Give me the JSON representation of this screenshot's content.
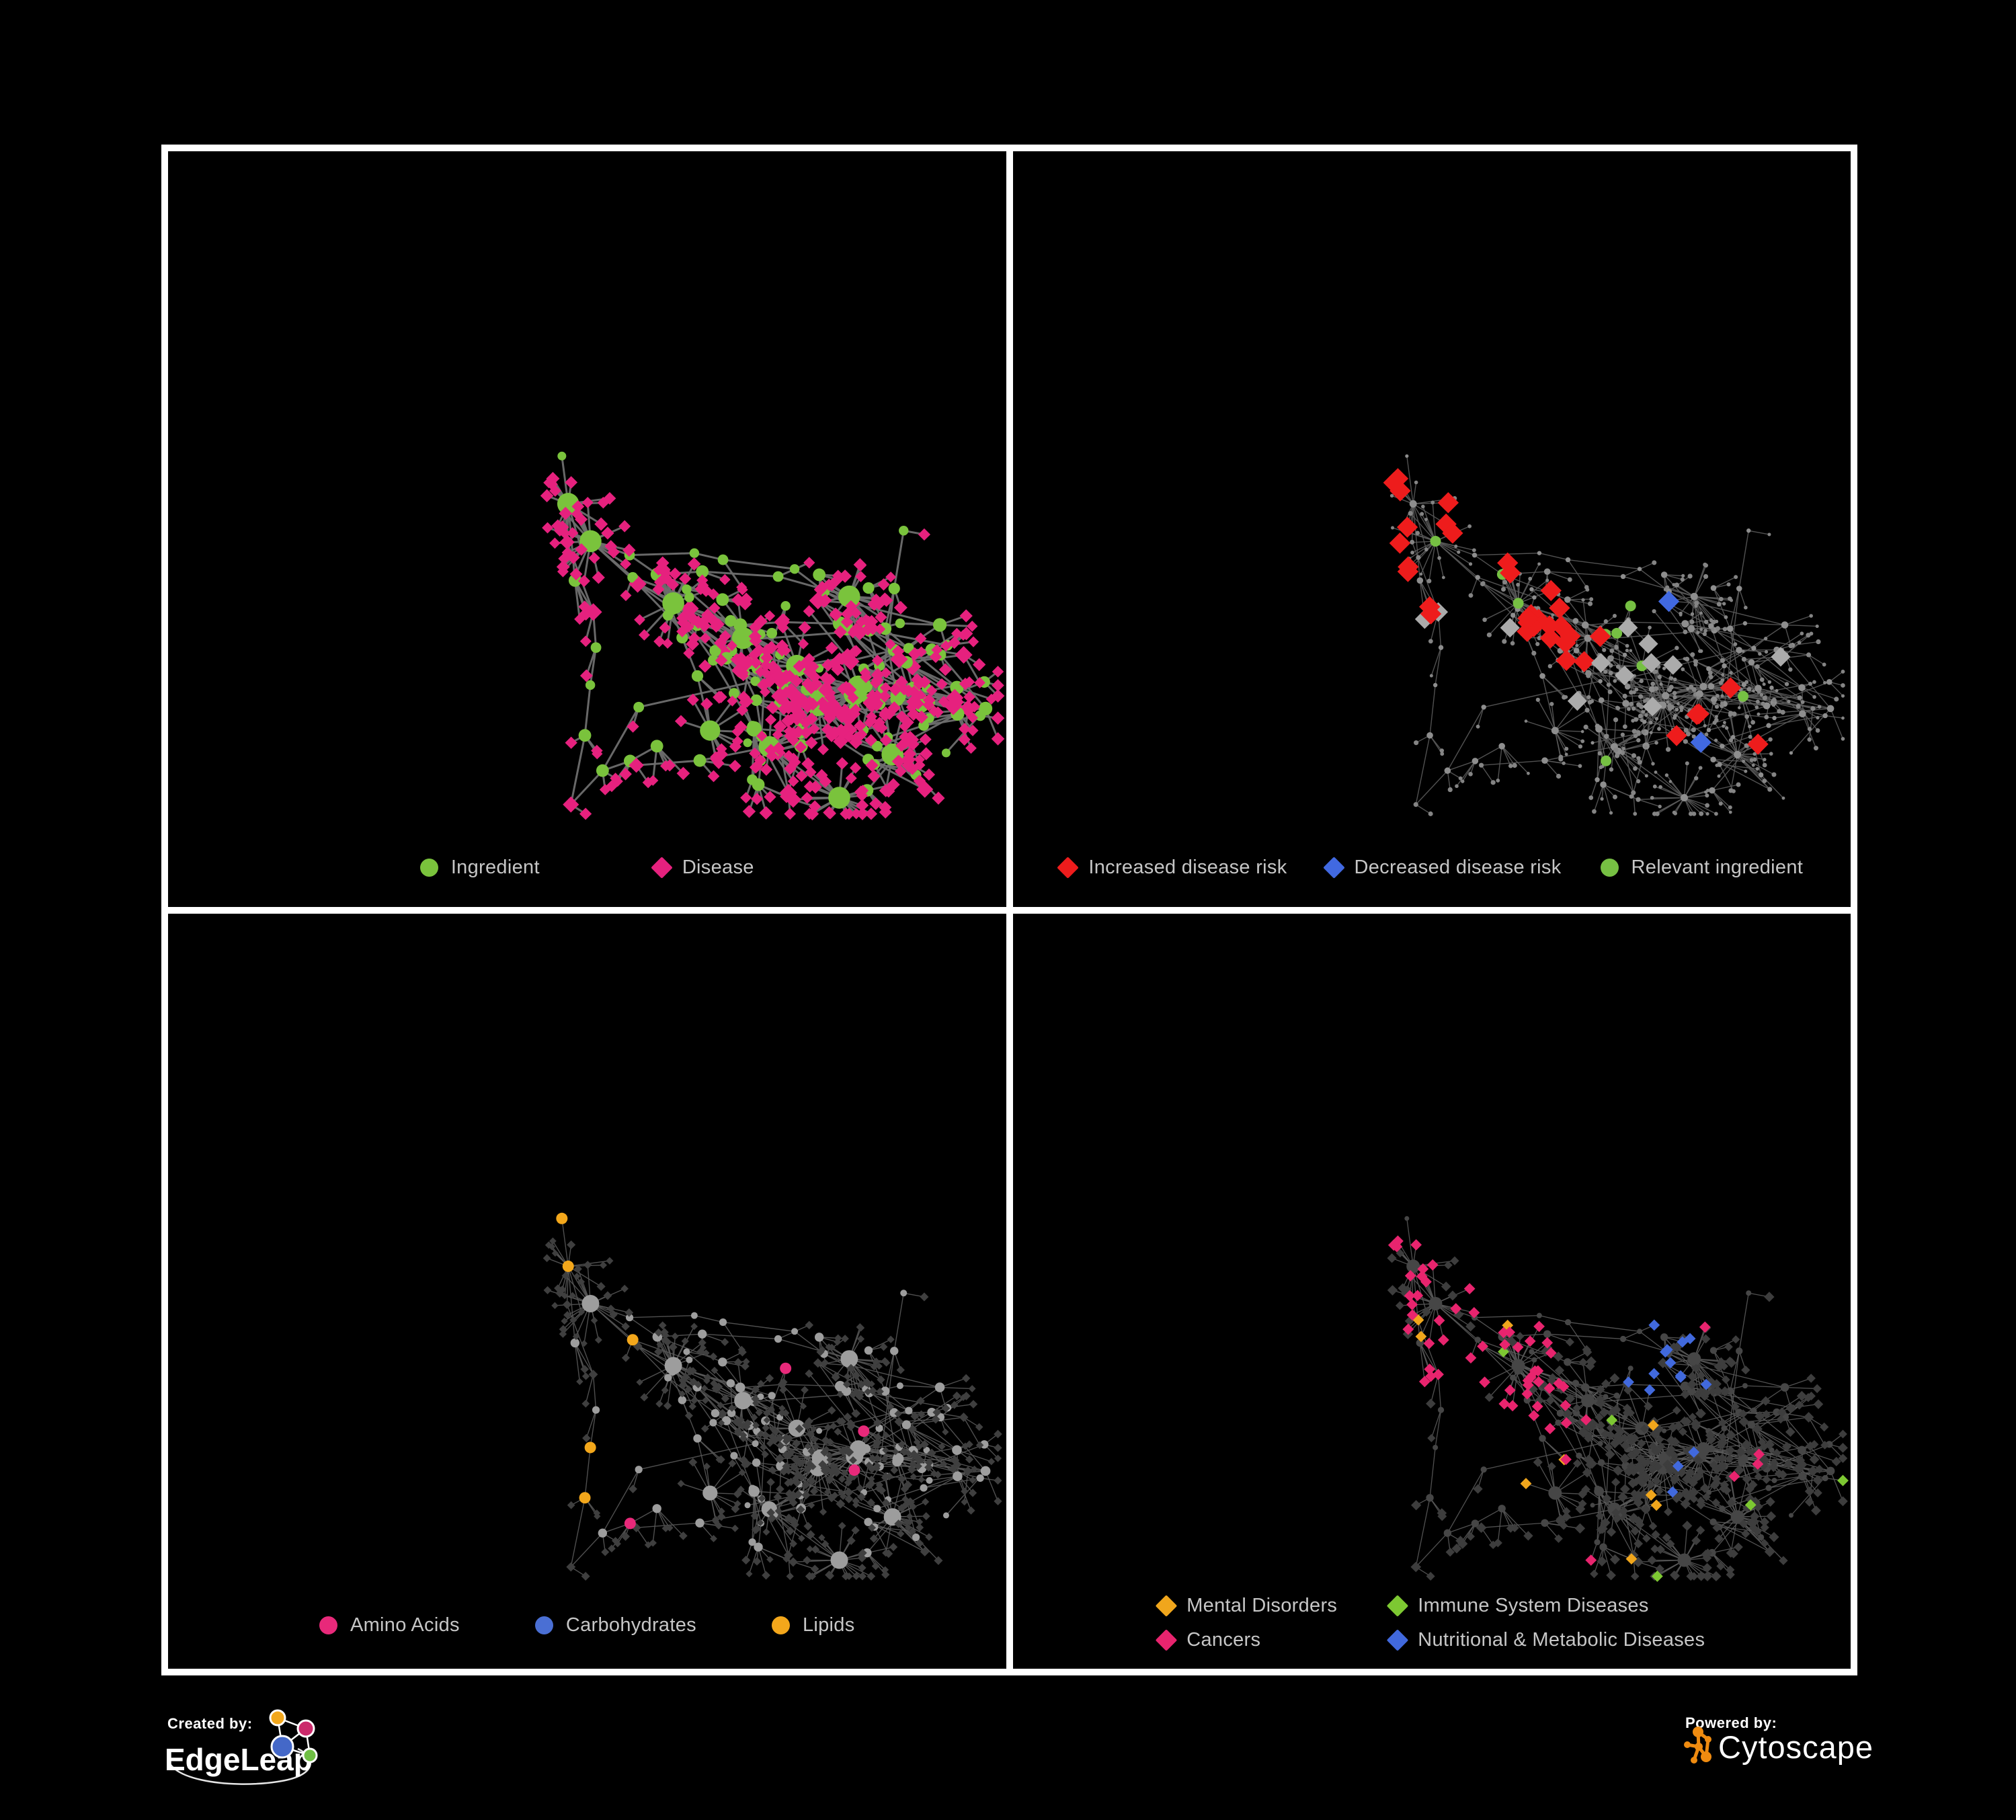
{
  "poster": {
    "background": "#000000",
    "frame_color": "#ffffff",
    "legend_text_color": "#c6c6c6"
  },
  "footer": {
    "created_by_label": "Created by:",
    "created_by_brand": "EdgeLeap",
    "powered_by_label": "Powered by:",
    "powered_by_brand": "Cytoscape",
    "edgeleap_colors": {
      "blue": "#4468c8",
      "orange": "#f2a71c",
      "magenta": "#cb2a6b",
      "green": "#6fbf44"
    },
    "cytoscape_orange": "#ef8b10"
  },
  "chart_data": [
    {
      "id": "ingredient-disease-network",
      "type": "network",
      "position": "top-left",
      "description": "Ingredient-disease association network: green circles are ingredients, pink diamonds are diseases, gray edges are associations.",
      "legend": [
        {
          "label": "Ingredient",
          "color": "#7ac33c",
          "shape": "circle"
        },
        {
          "label": "Disease",
          "color": "#e6217e",
          "shape": "diamond"
        }
      ],
      "style": {
        "edge_color": "#6e6e6e",
        "edge_width": 3.0,
        "edge_opacity": 0.95,
        "scale": 1.3,
        "ingredient": {
          "shape": "circle",
          "color": "#7ac33c",
          "size_min": 5.0,
          "size_max": 12.5
        },
        "disease": {
          "shape": "diamond",
          "color": "#e6217e",
          "size_min": 5.5,
          "size_max": 9.0
        }
      },
      "highlights": []
    },
    {
      "id": "disease-risk-network",
      "type": "network",
      "position": "top-right",
      "description": "Same network, highlighting diseases with increased (red) or decreased (blue) risk and relevant ingredients (green); all other nodes are small gray dots.",
      "legend": [
        {
          "label": "Increased disease risk",
          "color": "#ee1c1c",
          "shape": "diamond"
        },
        {
          "label": "Decreased disease risk",
          "color": "#4169e1",
          "shape": "diamond"
        },
        {
          "label": "Relevant ingredient",
          "color": "#76c043",
          "shape": "circle"
        }
      ],
      "style": {
        "edge_color": "#5a5a5a",
        "edge_width": 1.4,
        "edge_opacity": 0.9,
        "scale": 1.0,
        "ingredient": {
          "shape": "circle",
          "color": "#8e8e8e",
          "size_min": 2.6,
          "size_max": 5.5
        },
        "disease": {
          "shape": "circle",
          "color": "#848484",
          "size_min": 2.3,
          "size_max": 3.6
        }
      },
      "highlights": [
        {
          "name": "increased-disease-risk",
          "target": "disease",
          "shape": "diamond",
          "color": "#ee1c1c",
          "size": 14,
          "clusters": [
            {
              "x": 0.5,
              "y": 0.44,
              "r": 220,
              "p": 0.3
            },
            {
              "x": 0.33,
              "y": 0.4,
              "r": 85,
              "p": 0.35
            },
            {
              "x": 0.66,
              "y": 0.63,
              "r": 60,
              "p": 0.45
            },
            {
              "x": 0.86,
              "y": 0.46,
              "r": 40,
              "p": 0.5
            }
          ],
          "scatter_p": 0.01
        },
        {
          "name": "decreased-disease-risk",
          "target": "disease",
          "shape": "diamond",
          "color": "#4169e1",
          "size": 14,
          "clusters": [
            {
              "x": 0.28,
              "y": 0.43,
              "r": 95,
              "p": 0.42
            },
            {
              "x": 0.83,
              "y": 0.34,
              "r": 42,
              "p": 0.9
            }
          ],
          "scatter_p": 0.003
        },
        {
          "name": "unchanged-risk",
          "target": "disease",
          "shape": "diamond",
          "color": "#ababab",
          "size": 13,
          "clusters": [
            {
              "x": 0.48,
              "y": 0.45,
              "r": 250,
              "p": 0.05
            },
            {
              "x": 0.72,
              "y": 0.68,
              "r": 90,
              "p": 0.1
            }
          ],
          "scatter_p": 0.004
        },
        {
          "name": "relevant-ingredient",
          "target": "ingredient",
          "shape": "circle",
          "color": "#76c043",
          "size": 8,
          "clusters": [
            {
              "x": 0.48,
              "y": 0.42,
              "r": 260,
              "p": 0.22
            },
            {
              "x": 0.74,
              "y": 0.62,
              "r": 55,
              "p": 0.7
            },
            {
              "x": 0.3,
              "y": 0.4,
              "r": 120,
              "p": 0.28
            },
            {
              "x": 0.8,
              "y": 0.4,
              "r": 50,
              "p": 0.5
            }
          ],
          "scatter_p": 0.018
        }
      ]
    },
    {
      "id": "nutrient-class-network",
      "type": "network",
      "position": "bottom-left",
      "description": "Same network, coloring ingredient nodes by nutrient class: Amino Acids (pink), Carbohydrates (blue), Lipids (orange); diseases are small dark diamonds.",
      "legend": [
        {
          "label": "Amino Acids",
          "color": "#e8297a",
          "shape": "circle"
        },
        {
          "label": "Carbohydrates",
          "color": "#4a6fd4",
          "shape": "circle"
        },
        {
          "label": "Lipids",
          "color": "#f3a71b",
          "shape": "circle"
        }
      ],
      "style": {
        "edge_color": "#585858",
        "edge_width": 1.4,
        "edge_opacity": 0.9,
        "scale": 1.0,
        "ingredient": {
          "shape": "circle",
          "color": "#9d9d9d",
          "size_min": 4.5,
          "size_max": 13
        },
        "disease": {
          "shape": "diamond",
          "color": "#3f3f3f",
          "size_min": 4.5,
          "size_max": 6.2
        }
      },
      "highlights": [
        {
          "name": "lipids",
          "target": "ingredient",
          "shape": "circle",
          "color": "#f3a71b",
          "size": 8.5,
          "clusters": [
            {
              "x": 0.5,
              "y": 0.4,
              "r": 95,
              "p": 0.62
            },
            {
              "x": 0.44,
              "y": 0.2,
              "r": 90,
              "p": 0.3
            },
            {
              "x": 0.48,
              "y": 0.74,
              "r": 90,
              "p": 0.4
            },
            {
              "x": 0.52,
              "y": 0.55,
              "r": 150,
              "p": 0.12
            }
          ],
          "scatter_p": 0.03
        },
        {
          "name": "carbohydrates",
          "target": "ingredient",
          "shape": "circle",
          "color": "#4a6fd4",
          "size": 8.5,
          "clusters": [
            {
              "x": 0.51,
              "y": 0.41,
              "r": 85,
              "p": 0.22
            },
            {
              "x": 0.34,
              "y": 0.14,
              "r": 60,
              "p": 0.25
            }
          ],
          "scatter_p": 0.012
        },
        {
          "name": "amino-acids",
          "target": "ingredient",
          "shape": "circle",
          "color": "#e8297a",
          "size": 8.5,
          "clusters": [
            {
              "x": 0.22,
              "y": 0.62,
              "r": 180,
              "p": 0.08
            },
            {
              "x": 0.78,
              "y": 0.6,
              "r": 200,
              "p": 0.07
            },
            {
              "x": 0.3,
              "y": 0.3,
              "r": 160,
              "p": 0.06
            }
          ],
          "scatter_p": 0.028
        }
      ]
    },
    {
      "id": "disease-category-network",
      "type": "network",
      "position": "bottom-right",
      "description": "Same network, coloring disease nodes by category: Mental Disorders (orange), Immune System Diseases (green), Cancers (pink), Nutritional & Metabolic Diseases (blue); other nodes dark gray.",
      "legend": [
        {
          "label": "Mental Disorders",
          "color": "#f0a61c",
          "shape": "diamond"
        },
        {
          "label": "Immune System Diseases",
          "color": "#7dc832",
          "shape": "diamond"
        },
        {
          "label": "Cancers",
          "color": "#e8246e",
          "shape": "diamond"
        },
        {
          "label": "Nutritional & Metabolic Diseases",
          "color": "#4169dd",
          "shape": "diamond"
        }
      ],
      "style": {
        "edge_color": "#5a5a5a",
        "edge_width": 1.3,
        "edge_opacity": 0.9,
        "scale": 1.0,
        "ingredient": {
          "shape": "circle",
          "color": "#464646",
          "size_min": 3.5,
          "size_max": 10
        },
        "disease": {
          "shape": "diamond",
          "color": "#3d3d3d",
          "size_min": 5.5,
          "size_max": 7.0
        }
      },
      "highlights": [
        {
          "name": "mental-disorders",
          "target": "disease",
          "shape": "diamond",
          "color": "#f0a61c",
          "size": 7.5,
          "clusters": [
            {
              "x": 0.26,
              "y": 0.42,
              "r": 165,
              "p": 0.8
            },
            {
              "x": 0.38,
              "y": 0.2,
              "r": 90,
              "p": 0.25
            },
            {
              "x": 0.13,
              "y": 0.1,
              "r": 70,
              "p": 0.3
            }
          ],
          "scatter_p": 0.018
        },
        {
          "name": "cancers",
          "target": "disease",
          "shape": "diamond",
          "color": "#e8246e",
          "size": 7.5,
          "clusters": [
            {
              "x": 0.52,
              "y": 0.5,
              "r": 150,
              "p": 0.5
            },
            {
              "x": 0.62,
              "y": 0.64,
              "r": 90,
              "p": 0.4
            },
            {
              "x": 0.93,
              "y": 0.22,
              "r": 55,
              "p": 0.55
            }
          ],
          "scatter_p": 0.012
        },
        {
          "name": "nutritional-metabolic-diseases",
          "target": "disease",
          "shape": "diamond",
          "color": "#4169dd",
          "size": 7.5,
          "clusters": [
            {
              "x": 0.82,
              "y": 0.3,
              "r": 130,
              "p": 0.5
            },
            {
              "x": 0.77,
              "y": 0.58,
              "r": 70,
              "p": 0.65
            },
            {
              "x": 0.3,
              "y": 0.1,
              "r": 90,
              "p": 0.35
            },
            {
              "x": 0.56,
              "y": 0.9,
              "r": 70,
              "p": 0.3
            },
            {
              "x": 0.95,
              "y": 0.5,
              "r": 60,
              "p": 0.4
            }
          ],
          "scatter_p": 0.028
        },
        {
          "name": "immune-system-diseases",
          "target": "disease",
          "shape": "diamond",
          "color": "#7dc832",
          "size": 7.5,
          "clusters": [
            {
              "x": 0.52,
              "y": 0.45,
              "r": 170,
              "p": 0.05
            }
          ],
          "scatter_p": 0.008
        }
      ]
    }
  ]
}
